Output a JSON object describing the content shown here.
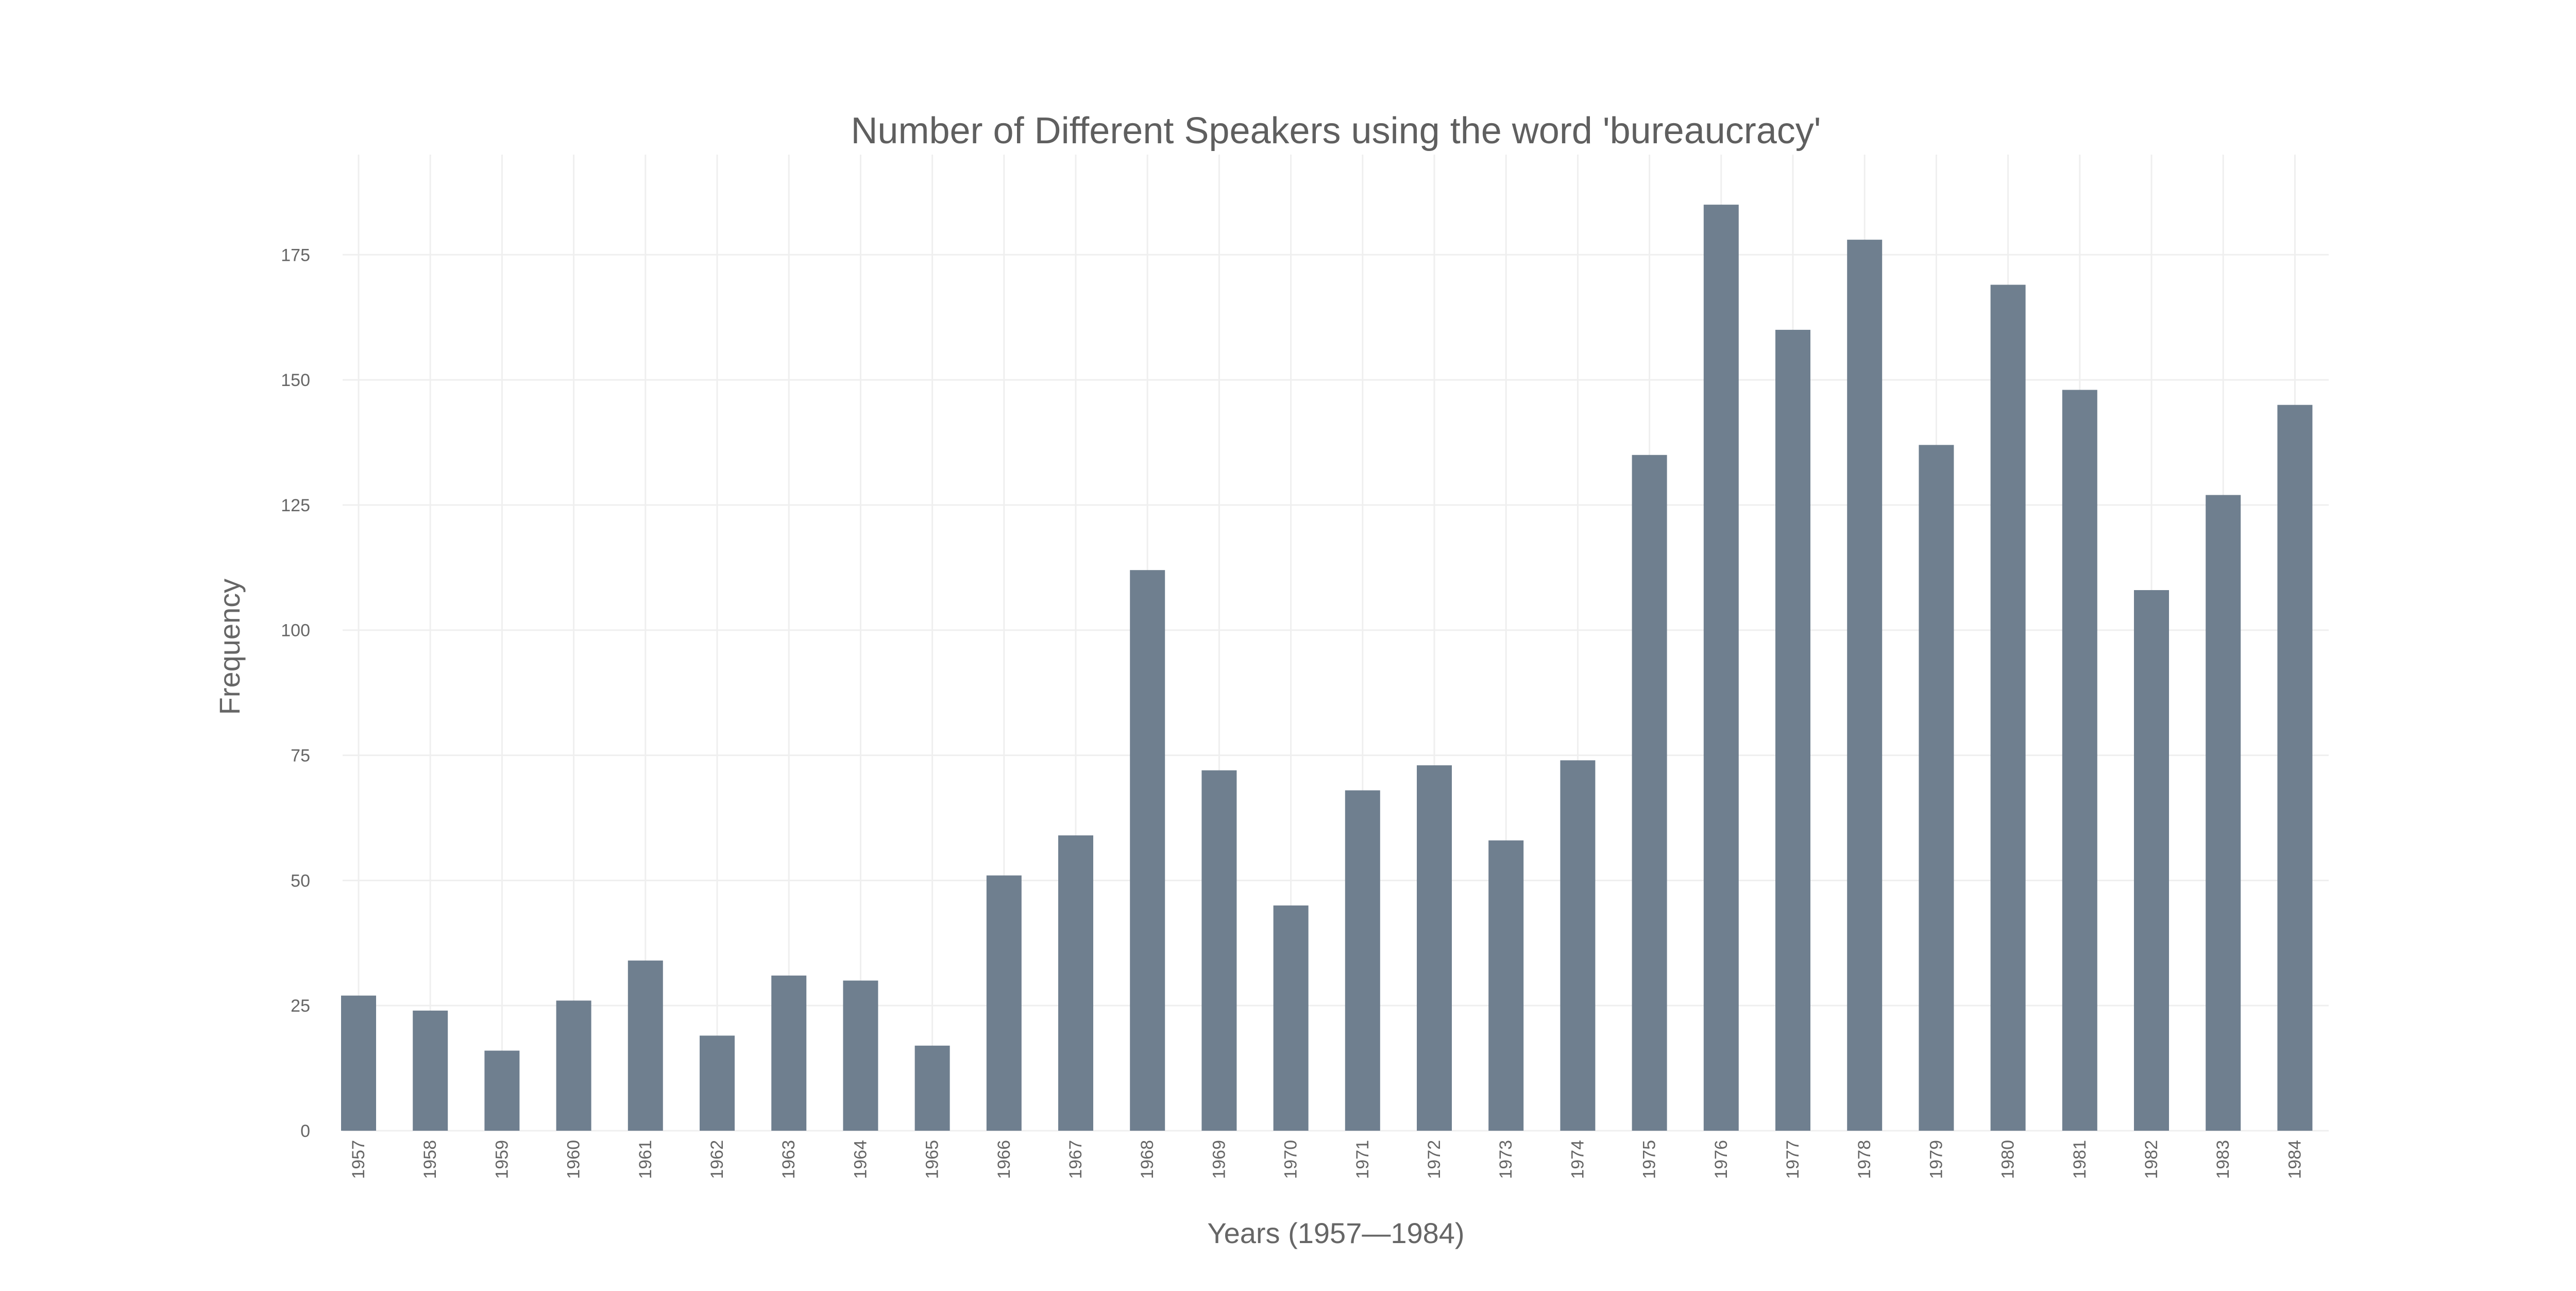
{
  "chart_data": {
    "type": "bar",
    "title": "Number of Different Speakers using the word 'bureaucracy'",
    "xlabel": "Years (1957—1984)",
    "ylabel": "Frequency",
    "categories": [
      "1957",
      "1958",
      "1959",
      "1960",
      "1961",
      "1962",
      "1963",
      "1964",
      "1965",
      "1966",
      "1967",
      "1968",
      "1969",
      "1970",
      "1971",
      "1972",
      "1973",
      "1974",
      "1975",
      "1976",
      "1977",
      "1978",
      "1979",
      "1980",
      "1981",
      "1982",
      "1983",
      "1984"
    ],
    "values": [
      27,
      24,
      16,
      26,
      34,
      19,
      31,
      30,
      17,
      51,
      59,
      112,
      72,
      45,
      68,
      73,
      58,
      74,
      135,
      185,
      160,
      178,
      137,
      169,
      148,
      108,
      127,
      145
    ],
    "ylim": [
      0,
      195
    ],
    "yticks": [
      0,
      25,
      50,
      75,
      100,
      125,
      150,
      175
    ],
    "grid": true,
    "bar_color": "#6f7f8f"
  }
}
